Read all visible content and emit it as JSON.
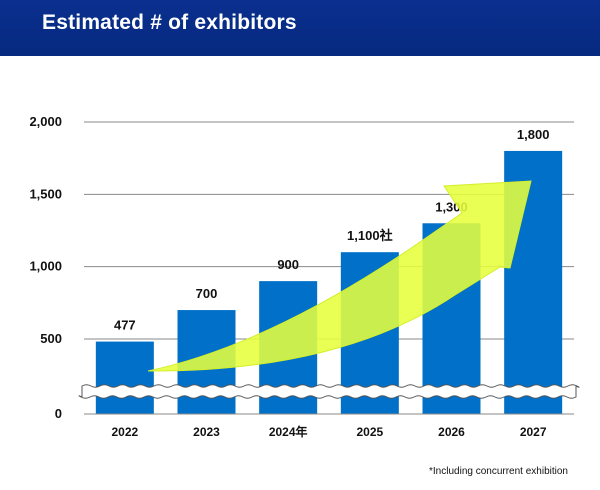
{
  "header": {
    "title": "Estimated # of exhibitors"
  },
  "footnote": "*Including concurrent exhibition",
  "colors": {
    "header_bg": "#062a7f",
    "bar": "#0070c8",
    "arrow": "#e6ff3c",
    "grid": "#8a8a8a"
  },
  "chart_data": {
    "type": "bar",
    "categories": [
      "2022",
      "2023",
      "2024年",
      "2025",
      "2026",
      "2027"
    ],
    "values": [
      477,
      700,
      900,
      1100,
      1300,
      1800
    ],
    "data_labels": [
      "477",
      "700",
      "900",
      "1,100社",
      "1,300",
      "1,800"
    ],
    "y_ticks": [
      {
        "value": 0,
        "label": "0"
      },
      {
        "value": 500,
        "label": "500"
      },
      {
        "value": 1000,
        "label": "1,000"
      },
      {
        "value": 1500,
        "label": "1,500"
      },
      {
        "value": 2000,
        "label": "2,000"
      }
    ],
    "ylim": [
      0,
      2000
    ],
    "axis_break": true,
    "grid": true,
    "legend": "none",
    "annotation": "upward trend arrow"
  }
}
